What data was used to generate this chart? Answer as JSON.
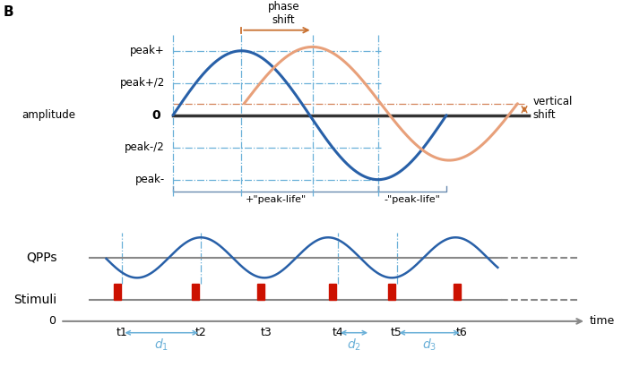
{
  "top_panel": {
    "blue_color": "#2860a8",
    "orange_color": "#e8a07a",
    "dashed_blue": "#6ab0d8",
    "dashed_orange": "#d4845a",
    "zero_line_color": "#333333",
    "brace_color": "#5a8ab8",
    "bracket_color": "#6a8ab0",
    "annotation_color": "#888888",
    "phase_arrow_color": "#c87030",
    "vertical_shift": 0.18,
    "blue_amplitude": 1.0,
    "orange_amplitude": 0.88,
    "period": 2.0,
    "phase_shift": 0.52
  },
  "bottom_panel": {
    "blue_color": "#2860a8",
    "red_color": "#cc1100",
    "baseline_color": "#888888",
    "dashed_blue": "#6ab0d8",
    "t_labels": [
      "t1",
      "t2",
      "t3",
      "t4",
      "t5",
      "t6"
    ]
  },
  "fig_bg": "#ffffff"
}
